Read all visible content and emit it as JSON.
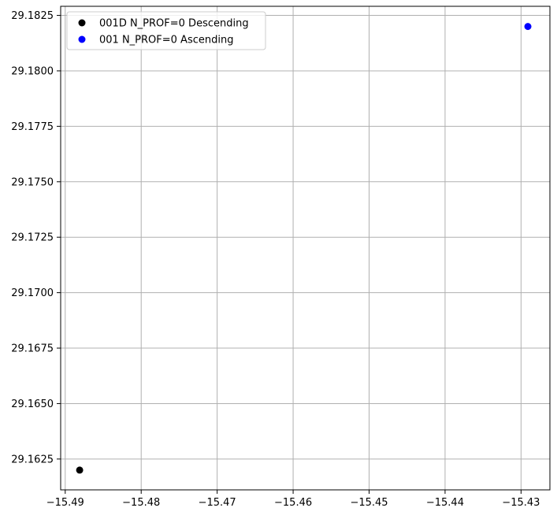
{
  "chart_data": {
    "type": "scatter",
    "title": "",
    "xlabel": "",
    "ylabel": "",
    "xlim": [
      -15.4906,
      -15.4262
    ],
    "ylim": [
      29.16111,
      29.18291
    ],
    "grid": true,
    "legend_placement": "top-left",
    "x_ticks": [
      {
        "value": -15.49,
        "label": "−15.49"
      },
      {
        "value": -15.48,
        "label": "−15.48"
      },
      {
        "value": -15.47,
        "label": "−15.47"
      },
      {
        "value": -15.46,
        "label": "−15.46"
      },
      {
        "value": -15.45,
        "label": "−15.45"
      },
      {
        "value": -15.44,
        "label": "−15.44"
      },
      {
        "value": -15.43,
        "label": "−15.43"
      }
    ],
    "y_ticks": [
      {
        "value": 29.1625,
        "label": "29.1625"
      },
      {
        "value": 29.165,
        "label": "29.1650"
      },
      {
        "value": 29.1675,
        "label": "29.1675"
      },
      {
        "value": 29.17,
        "label": "29.1700"
      },
      {
        "value": 29.1725,
        "label": "29.1725"
      },
      {
        "value": 29.175,
        "label": "29.1750"
      },
      {
        "value": 29.1775,
        "label": "29.1775"
      },
      {
        "value": 29.18,
        "label": "29.1800"
      },
      {
        "value": 29.1825,
        "label": "29.1825"
      }
    ],
    "series": [
      {
        "name": "001D N_PROF=0 Descending",
        "color": "#000000",
        "points": [
          {
            "x": -15.4881,
            "y": 29.162
          }
        ]
      },
      {
        "name": "001 N_PROF=0 Ascending",
        "color": "#0000ff",
        "points": [
          {
            "x": -15.4291,
            "y": 29.182
          }
        ]
      }
    ]
  }
}
